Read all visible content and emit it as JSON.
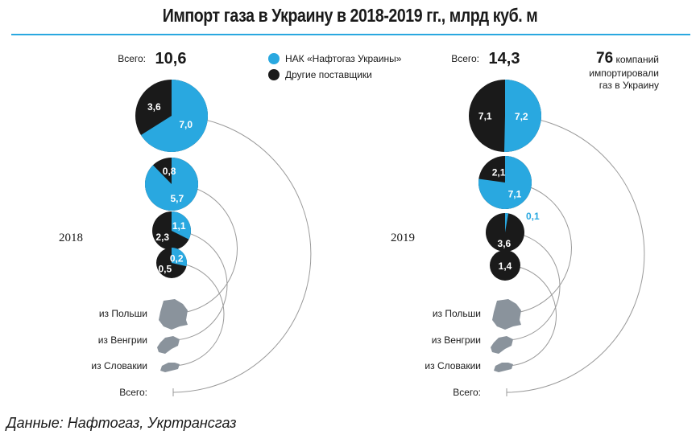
{
  "title": "Импорт газа в Украину в 2018-2019 гг., млрд куб. м",
  "source": "Данные: Нафтогаз, Укртрансгаз",
  "chart_data": {
    "type": "pie",
    "colors": {
      "naftogaz": "#29a8e0",
      "others": "#1a1a1a",
      "accent_rule": "#29a8e0",
      "country_shape": "#8a939c"
    },
    "legend": [
      "НАК «Нафтогаз Украины»",
      "Другие поставщики"
    ],
    "total_label": "Всего:",
    "note": {
      "number": "76",
      "text1": "компаний",
      "text2": "импортировали",
      "text3": "газ в Украину"
    },
    "panels": [
      {
        "year": "2018",
        "total": "10,6",
        "pies": [
          {
            "label": "Всего:",
            "naftogaz": 7.0,
            "others": 3.6,
            "naftogaz_text": "7,0",
            "others_text": "3,6"
          },
          {
            "label": "из Польши",
            "naftogaz": 5.7,
            "others": 0.8,
            "naftogaz_text": "5,7",
            "others_text": "0,8"
          },
          {
            "label": "из Венгрии",
            "naftogaz": 1.1,
            "others": 2.3,
            "naftogaz_text": "1,1",
            "others_text": "2,3"
          },
          {
            "label": "из Словакии",
            "naftogaz": 0.2,
            "others": 0.5,
            "naftogaz_text": "0,2",
            "others_text": "0,5"
          }
        ]
      },
      {
        "year": "2019",
        "total": "14,3",
        "pies": [
          {
            "label": "Всего:",
            "naftogaz": 7.2,
            "others": 7.1,
            "naftogaz_text": "7,2",
            "others_text": "7,1"
          },
          {
            "label": "из Польши",
            "naftogaz": 7.1,
            "others": 2.1,
            "naftogaz_text": "7,1",
            "others_text": "2,1"
          },
          {
            "label": "из Венгрии",
            "naftogaz": 0.1,
            "others": 3.6,
            "naftogaz_text": "0,1",
            "others_text": "3,6"
          },
          {
            "label": "из Словакии",
            "naftogaz": 0,
            "others": 1.4,
            "naftogaz_text": "",
            "others_text": "1,4"
          }
        ]
      }
    ]
  }
}
